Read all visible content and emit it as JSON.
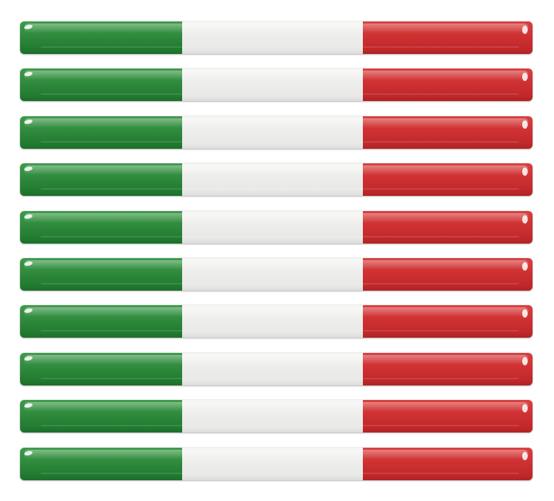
{
  "image": {
    "subject": "italian-flag-stripe-stickers",
    "strip_count": 10,
    "colors": {
      "green": "#2f8a3d",
      "white": "#eeeeec",
      "red": "#cf3132",
      "background": "#ffffff"
    }
  }
}
